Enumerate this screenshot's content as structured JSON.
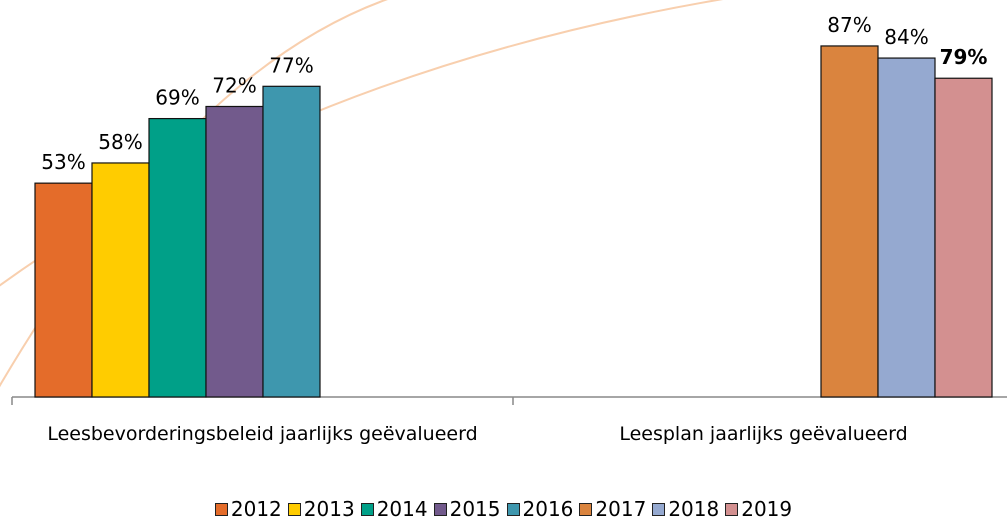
{
  "chart_data": {
    "type": "bar",
    "categories": [
      "Leesbevorderingsbeleid jaarlijks geëvalueerd",
      "Leesplan jaarlijks geëvalueerd"
    ],
    "series": [
      {
        "name": "2012",
        "color": "#e46c2a",
        "values": [
          53,
          null
        ],
        "value_labels": [
          "53%",
          null
        ]
      },
      {
        "name": "2013",
        "color": "#ffcc00",
        "values": [
          58,
          null
        ],
        "value_labels": [
          "58%",
          null
        ]
      },
      {
        "name": "2014",
        "color": "#00a088",
        "values": [
          69,
          null
        ],
        "value_labels": [
          "69%",
          null
        ]
      },
      {
        "name": "2015",
        "color": "#725a8c",
        "values": [
          72,
          null
        ],
        "value_labels": [
          "72%",
          null
        ]
      },
      {
        "name": "2016",
        "color": "#3e97ae",
        "values": [
          77,
          null
        ],
        "value_labels": [
          "77%",
          null
        ]
      },
      {
        "name": "2017",
        "color": "#da843e",
        "values": [
          null,
          87
        ],
        "value_labels": [
          null,
          "87%"
        ]
      },
      {
        "name": "2018",
        "color": "#95a9d0",
        "values": [
          null,
          84
        ],
        "value_labels": [
          null,
          "84%"
        ]
      },
      {
        "name": "2019",
        "color": "#d39090",
        "values": [
          null,
          79
        ],
        "value_labels": [
          null,
          "79%"
        ]
      }
    ]
  }
}
